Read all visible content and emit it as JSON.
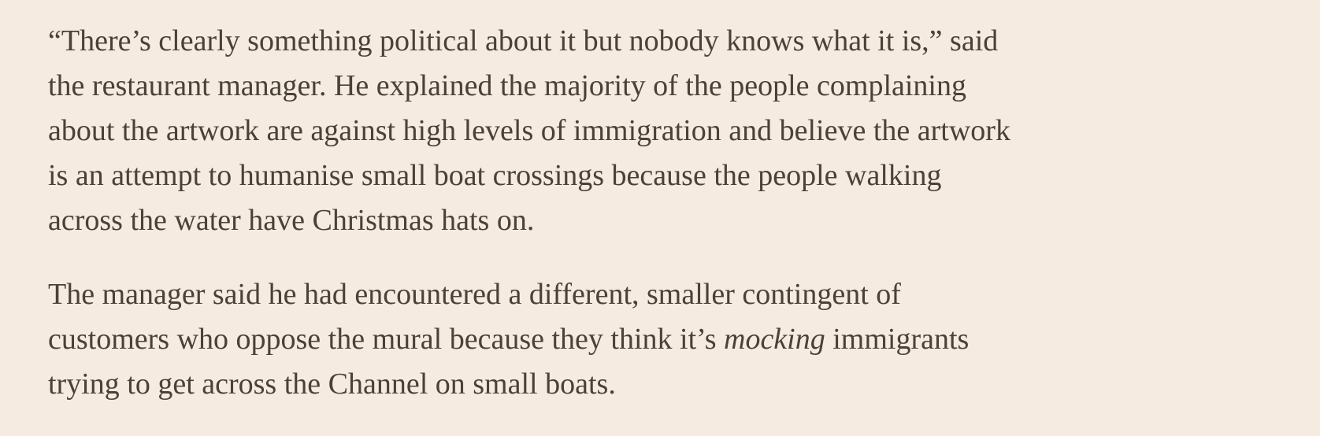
{
  "article": {
    "paragraphs": [
      {
        "lines": [
          "“There’s clearly something political about it but nobody knows what it is,” said",
          "the restaurant manager. He explained the majority of the people complaining",
          "about the artwork are against high levels of immigration and believe the artwork",
          "is an attempt to humanise small boat crossings because the people walking",
          "across the water have Christmas hats on."
        ]
      },
      {
        "lines": [
          "The manager said he had encountered a different, smaller contingent of",
          [
            "customers who oppose the mural because they think it’s ",
            "mocking",
            " immigrants"
          ],
          "trying to get across the Channel on small boats."
        ]
      }
    ]
  }
}
